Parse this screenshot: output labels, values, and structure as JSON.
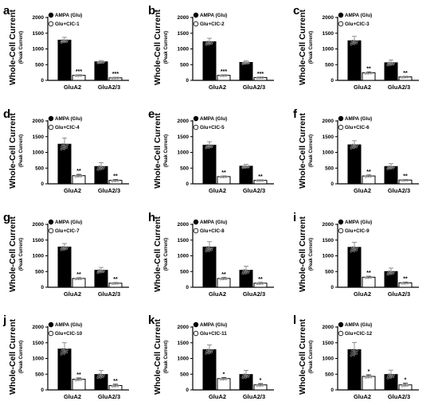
{
  "figure": {
    "ylabel_main": "Whole-Cell Current",
    "ylabel_sub": "(Peak Current)",
    "yticks": [
      "0",
      "500",
      "1000",
      "1500",
      "2000"
    ],
    "categories": [
      "GluA2",
      "GluA2/3"
    ],
    "legend_filled": "AMPA (Glu)"
  },
  "chart_data": [
    {
      "panel": "a",
      "type": "bar",
      "legend": [
        "AMPA (Glu)",
        "Glu+CIC-1"
      ],
      "categories": [
        "GluA2",
        "GluA2/3"
      ],
      "ylim": [
        0,
        2000
      ],
      "series": [
        {
          "name": "AMPA (Glu)",
          "values": [
            1280,
            590
          ],
          "errors": [
            90,
            40
          ]
        },
        {
          "name": "Glu+CIC-1",
          "values": [
            160,
            80
          ],
          "errors": [
            20,
            15
          ]
        }
      ],
      "sig": [
        "***",
        "***"
      ]
    },
    {
      "panel": "b",
      "type": "bar",
      "legend": [
        "AMPA (Glu)",
        "Glu+CIC-2"
      ],
      "categories": [
        "GluA2",
        "GluA2/3"
      ],
      "ylim": [
        0,
        2000
      ],
      "series": [
        {
          "name": "AMPA (Glu)",
          "values": [
            1230,
            570
          ],
          "errors": [
            110,
            50
          ]
        },
        {
          "name": "Glu+CIC-2",
          "values": [
            160,
            90
          ],
          "errors": [
            20,
            15
          ]
        }
      ],
      "sig": [
        "***",
        "***"
      ]
    },
    {
      "panel": "c",
      "type": "bar",
      "legend": [
        "AMPA (Glu)",
        "Glu+CIC-3"
      ],
      "categories": [
        "GluA2",
        "GluA2/3"
      ],
      "ylim": [
        0,
        2000
      ],
      "series": [
        {
          "name": "AMPA (Glu)",
          "values": [
            1260,
            560
          ],
          "errors": [
            140,
            90
          ]
        },
        {
          "name": "Glu+CIC-3",
          "values": [
            240,
            110
          ],
          "errors": [
            30,
            20
          ]
        }
      ],
      "sig": [
        "**",
        "**"
      ]
    },
    {
      "panel": "d",
      "type": "bar",
      "legend": [
        "AMPA (Glu)",
        "Glu+CIC-4"
      ],
      "categories": [
        "GluA2",
        "GluA2/3"
      ],
      "ylim": [
        0,
        2000
      ],
      "series": [
        {
          "name": "AMPA (Glu)",
          "values": [
            1260,
            550
          ],
          "errors": [
            200,
            120
          ]
        },
        {
          "name": "Glu+CIC-4",
          "values": [
            260,
            110
          ],
          "errors": [
            40,
            30
          ]
        }
      ],
      "sig": [
        "**",
        "**"
      ]
    },
    {
      "panel": "e",
      "type": "bar",
      "legend": [
        "AMPA (Glu)",
        "Glu+CIC-5"
      ],
      "categories": [
        "GluA2",
        "GluA2/3"
      ],
      "ylim": [
        0,
        2000
      ],
      "series": [
        {
          "name": "AMPA (Glu)",
          "values": [
            1230,
            560
          ],
          "errors": [
            110,
            60
          ]
        },
        {
          "name": "Glu+CIC-5",
          "values": [
            230,
            110
          ],
          "errors": [
            20,
            15
          ]
        }
      ],
      "sig": [
        "**",
        "**"
      ]
    },
    {
      "panel": "f",
      "type": "bar",
      "legend": [
        "AMPA (Glu)",
        "Glu+CIC-6"
      ],
      "categories": [
        "GluA2",
        "GluA2/3"
      ],
      "ylim": [
        0,
        2000
      ],
      "series": [
        {
          "name": "AMPA (Glu)",
          "values": [
            1240,
            550
          ],
          "errors": [
            130,
            90
          ]
        },
        {
          "name": "Glu+CIC-6",
          "values": [
            250,
            120
          ],
          "errors": [
            30,
            20
          ]
        }
      ],
      "sig": [
        "**",
        "**"
      ]
    },
    {
      "panel": "g",
      "type": "bar",
      "legend": [
        "AMPA (Glu)",
        "Glu+CIC-7"
      ],
      "categories": [
        "GluA2",
        "GluA2/3"
      ],
      "ylim": [
        0,
        2000
      ],
      "series": [
        {
          "name": "AMPA (Glu)",
          "values": [
            1280,
            540
          ],
          "errors": [
            110,
            90
          ]
        },
        {
          "name": "Glu+CIC-7",
          "values": [
            280,
            130
          ],
          "errors": [
            25,
            20
          ]
        }
      ],
      "sig": [
        "**",
        "**"
      ]
    },
    {
      "panel": "h",
      "type": "bar",
      "legend": [
        "AMPA (Glu)",
        "Glu+CIC-8"
      ],
      "categories": [
        "GluA2",
        "GluA2/3"
      ],
      "ylim": [
        0,
        2000
      ],
      "series": [
        {
          "name": "AMPA (Glu)",
          "values": [
            1280,
            540
          ],
          "errors": [
            170,
            130
          ]
        },
        {
          "name": "Glu+CIC-8",
          "values": [
            280,
            130
          ],
          "errors": [
            30,
            25
          ]
        }
      ],
      "sig": [
        "**",
        "**"
      ]
    },
    {
      "panel": "i",
      "type": "bar",
      "legend": [
        "AMPA (Glu)",
        "Glu+CIC-9"
      ],
      "categories": [
        "GluA2",
        "GluA2/3"
      ],
      "ylim": [
        0,
        2000
      ],
      "series": [
        {
          "name": "AMPA (Glu)",
          "values": [
            1270,
            500
          ],
          "errors": [
            160,
            110
          ]
        },
        {
          "name": "Glu+CIC-9",
          "values": [
            320,
            140
          ],
          "errors": [
            30,
            25
          ]
        }
      ],
      "sig": [
        "**",
        "**"
      ]
    },
    {
      "panel": "j",
      "type": "bar",
      "legend": [
        "AMPA (Glu)",
        "Glu+CIC-10"
      ],
      "categories": [
        "GluA2",
        "GluA2/3"
      ],
      "ylim": [
        0,
        2000
      ],
      "series": [
        {
          "name": "AMPA (Glu)",
          "values": [
            1300,
            490
          ],
          "errors": [
            200,
            130
          ]
        },
        {
          "name": "Glu+CIC-10",
          "values": [
            340,
            140
          ],
          "errors": [
            40,
            40
          ]
        }
      ],
      "sig": [
        "**",
        "**"
      ]
    },
    {
      "panel": "k",
      "type": "bar",
      "legend": [
        "AMPA (Glu)",
        "Glu+CIC-11"
      ],
      "categories": [
        "GluA2",
        "GluA2/3"
      ],
      "ylim": [
        0,
        2000
      ],
      "series": [
        {
          "name": "AMPA (Glu)",
          "values": [
            1280,
            490
          ],
          "errors": [
            150,
            130
          ]
        },
        {
          "name": "Glu+CIC-11",
          "values": [
            360,
            160
          ],
          "errors": [
            35,
            40
          ]
        }
      ],
      "sig": [
        "*",
        "*"
      ]
    },
    {
      "panel": "l",
      "type": "bar",
      "legend": [
        "AMPA (Glu)",
        "Glu+CIC-12"
      ],
      "categories": [
        "GluA2",
        "GluA2/3"
      ],
      "ylim": [
        0,
        2000
      ],
      "series": [
        {
          "name": "AMPA (Glu)",
          "values": [
            1280,
            490
          ],
          "errors": [
            230,
            140
          ]
        },
        {
          "name": "Glu+CIC-12",
          "values": [
            430,
            160
          ],
          "errors": [
            50,
            50
          ]
        }
      ],
      "sig": [
        "*",
        "*"
      ]
    }
  ]
}
